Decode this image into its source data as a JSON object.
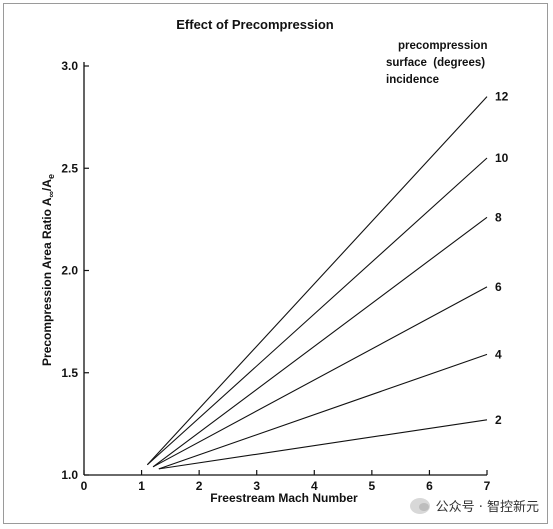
{
  "chart_data": {
    "type": "line",
    "title": "Effect of Precompression",
    "xlabel": "Freestream Mach Number",
    "ylabel": "Precompression Area Ratio A",
    "ylabel_subscripts": [
      "∞",
      "e"
    ],
    "xlim": [
      0,
      7
    ],
    "ylim": [
      1.0,
      3.0
    ],
    "x_ticks": [
      "0",
      "1",
      "2",
      "3",
      "4",
      "5",
      "6",
      "7"
    ],
    "y_ticks": [
      "1.0",
      "1.5",
      "2.0",
      "2.5",
      "3.0"
    ],
    "legend_title": [
      "precompression",
      "surface  (degrees)",
      "incidence"
    ],
    "legend_position": "top-right",
    "grid": false,
    "series": [
      {
        "name": "12",
        "x": [
          1.1,
          7
        ],
        "y": [
          1.05,
          2.85
        ]
      },
      {
        "name": "10",
        "x": [
          1.1,
          7
        ],
        "y": [
          1.05,
          2.55
        ]
      },
      {
        "name": "8",
        "x": [
          1.2,
          7
        ],
        "y": [
          1.04,
          2.26
        ]
      },
      {
        "name": "6",
        "x": [
          1.2,
          7
        ],
        "y": [
          1.04,
          1.92
        ]
      },
      {
        "name": "4",
        "x": [
          1.3,
          7
        ],
        "y": [
          1.03,
          1.59
        ]
      },
      {
        "name": "2",
        "x": [
          1.3,
          7
        ],
        "y": [
          1.03,
          1.27
        ]
      }
    ]
  },
  "watermark": {
    "text": "公众号 · 智控新元"
  }
}
